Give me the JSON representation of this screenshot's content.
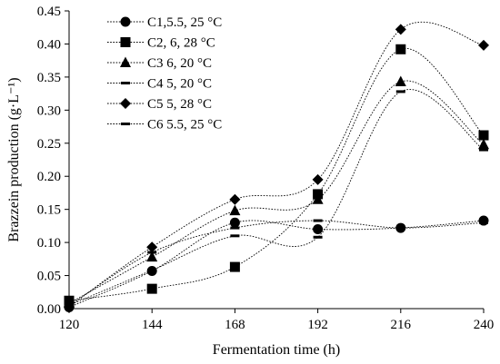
{
  "chart_data": {
    "type": "line",
    "xlabel": "Fermentation time (h)",
    "ylabel": "Brazzein production (g·L⁻¹)",
    "x": [
      120,
      144,
      168,
      192,
      216,
      240
    ],
    "xlim": [
      120,
      240
    ],
    "ylim": [
      0,
      0.45
    ],
    "y_ticks": [
      "0.00",
      "0.05",
      "0.10",
      "0.15",
      "0.20",
      "0.25",
      "0.30",
      "0.35",
      "0.40",
      "0.45"
    ],
    "x_ticks": [
      "120",
      "144",
      "168",
      "192",
      "216",
      "240"
    ],
    "grid": false,
    "legend_position": "top-left",
    "series": [
      {
        "name": "C1,5.5, 25 °C",
        "marker": "circle",
        "values": [
          0.002,
          0.057,
          0.13,
          0.12,
          0.122,
          0.133
        ]
      },
      {
        "name": "C2, 6, 28 °C",
        "marker": "square",
        "values": [
          0.012,
          0.03,
          0.063,
          0.173,
          0.392,
          0.262
        ]
      },
      {
        "name": "C3 6, 20  °C",
        "marker": "triangle",
        "values": [
          0.008,
          0.078,
          0.148,
          0.165,
          0.343,
          0.248
        ]
      },
      {
        "name": "C4 5, 20  °C",
        "marker": "dash",
        "values": [
          0.005,
          0.058,
          0.11,
          0.108,
          0.328,
          0.24
        ]
      },
      {
        "name": "C5 5, 28  °C",
        "marker": "diamond",
        "values": [
          0.003,
          0.093,
          0.165,
          0.195,
          0.422,
          0.398
        ]
      },
      {
        "name": "C6 5.5, 25 °C",
        "marker": "dash",
        "values": [
          0.004,
          0.085,
          0.122,
          0.133,
          0.122,
          0.13
        ]
      }
    ]
  }
}
